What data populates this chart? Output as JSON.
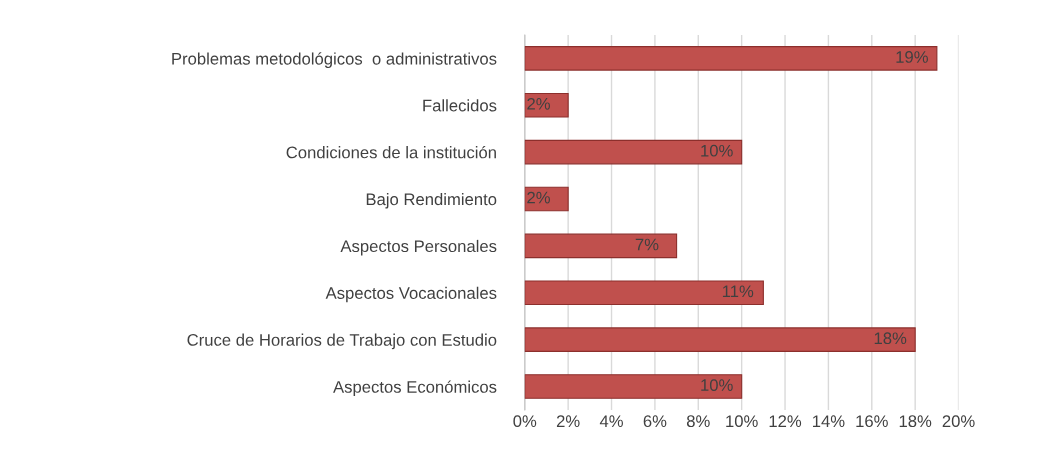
{
  "chart_data": {
    "type": "bar",
    "orientation": "horizontal",
    "categories": [
      "Problemas metodológicos  o administrativos",
      "Fallecidos",
      "Condiciones de la institución",
      "Bajo Rendimiento",
      "Aspectos Personales",
      "Aspectos Vocacionales",
      "Cruce de Horarios de Trabajo con Estudio",
      "Aspectos Económicos"
    ],
    "values": [
      19,
      2,
      10,
      2,
      7,
      11,
      18,
      10
    ],
    "value_labels": [
      "19%",
      "2%",
      "10%",
      "2%",
      "7%",
      "11%",
      "18%",
      "10%"
    ],
    "color": "#c0504d",
    "xlim": [
      0,
      20
    ],
    "xticks": [
      {
        "value": 0,
        "label": "0%"
      },
      {
        "value": 2,
        "label": "2%"
      },
      {
        "value": 4,
        "label": "4%"
      },
      {
        "value": 6,
        "label": "6%"
      },
      {
        "value": 8,
        "label": "8%"
      },
      {
        "value": 10,
        "label": "10%"
      },
      {
        "value": 12,
        "label": "12%"
      },
      {
        "value": 14,
        "label": "14%"
      },
      {
        "value": 16,
        "label": "16%"
      },
      {
        "value": 18,
        "label": "18%"
      },
      {
        "value": 20,
        "label": "20%"
      }
    ],
    "grid": "x",
    "legend": false
  }
}
